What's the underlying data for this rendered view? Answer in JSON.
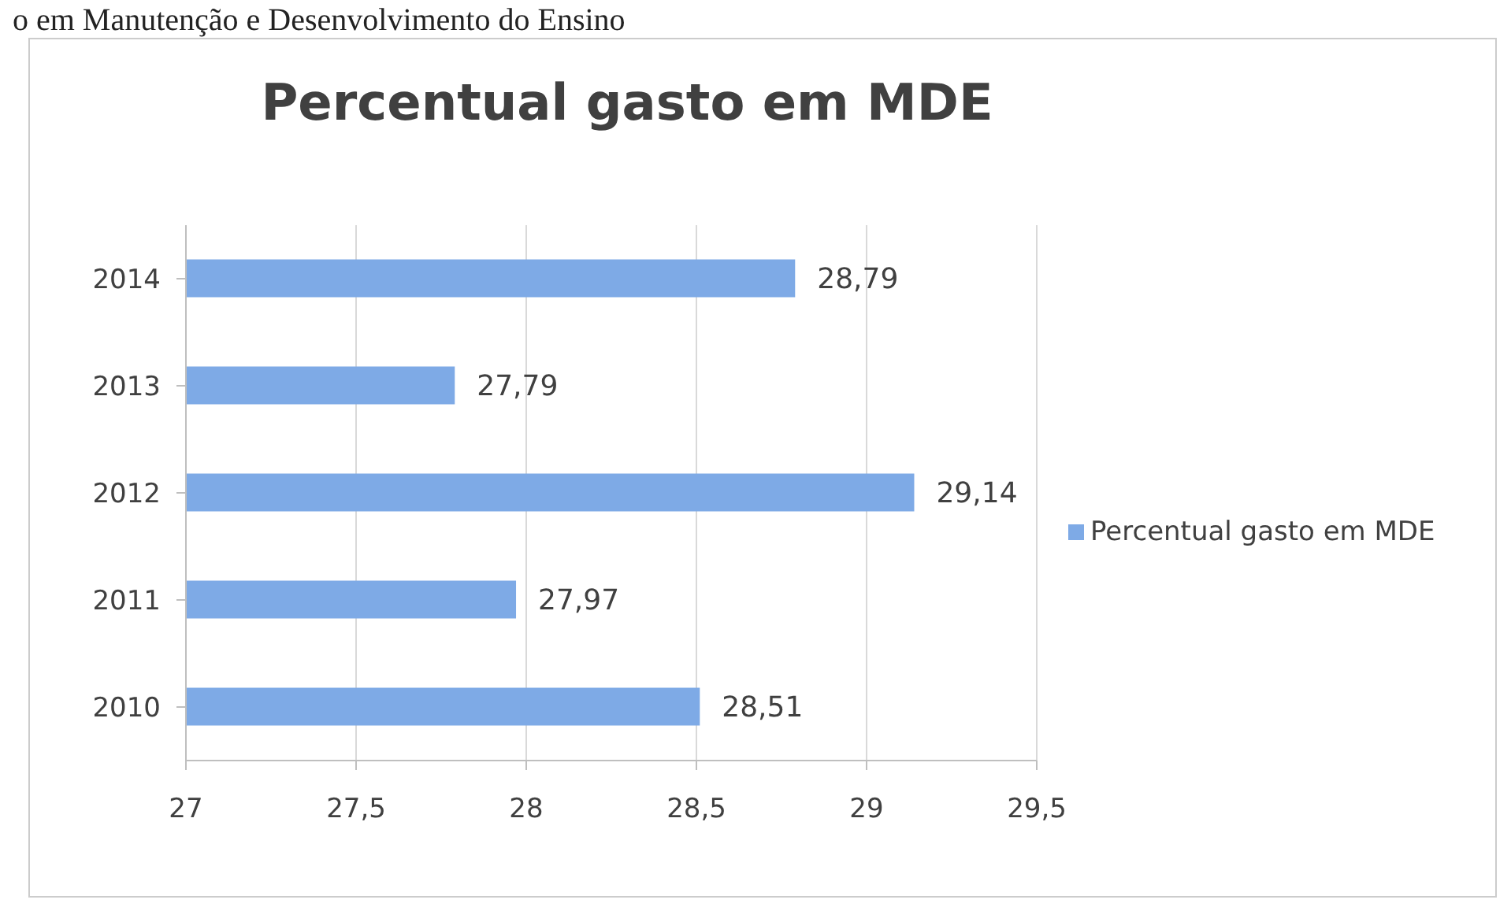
{
  "chart_data": {
    "type": "bar",
    "orientation": "horizontal",
    "title": "Percentual gasto em MDE",
    "annotations": [
      "o em Manutenção e Desenvolvimento do Ensino"
    ],
    "categories": [
      "2014",
      "2013",
      "2012",
      "2011",
      "2010"
    ],
    "series": [
      {
        "name": "Percentual gasto em MDE",
        "color": "#7eaae6",
        "values": [
          28.79,
          27.79,
          29.14,
          27.97,
          28.51
        ],
        "value_labels": [
          "28,79",
          "27,79",
          "29,14",
          "27,97",
          "28,51"
        ]
      }
    ],
    "xlim": [
      27,
      29.5
    ],
    "xticks": [
      27,
      {
        "value": 27.5,
        "label": "27,5"
      },
      28,
      {
        "value": 28.5,
        "label": "28,5"
      },
      29,
      {
        "value": 29.5,
        "label": "29,5"
      }
    ],
    "grid": "x",
    "legend": "right"
  }
}
